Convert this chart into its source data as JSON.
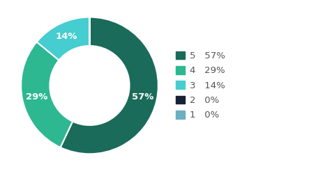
{
  "labels": [
    "5",
    "4",
    "3",
    "2",
    "1"
  ],
  "values": [
    57,
    29,
    14,
    0.0001,
    0.0001
  ],
  "display_pcts": [
    "57%",
    "29%",
    "14%",
    "0%",
    "0%"
  ],
  "colors": [
    "#1a6b5a",
    "#2db892",
    "#45cdd0",
    "#162235",
    "#6ab0c0"
  ],
  "legend_labels": [
    "5   57%",
    "4   29%",
    "3   14%",
    "2   0%",
    "1   0%"
  ],
  "background_color": "#ffffff",
  "text_color": "#555555",
  "wedge_text_color": "#ffffff",
  "donut_width": 0.42,
  "startangle": 90,
  "label_fontsize": 9.5,
  "legend_fontsize": 9.5
}
